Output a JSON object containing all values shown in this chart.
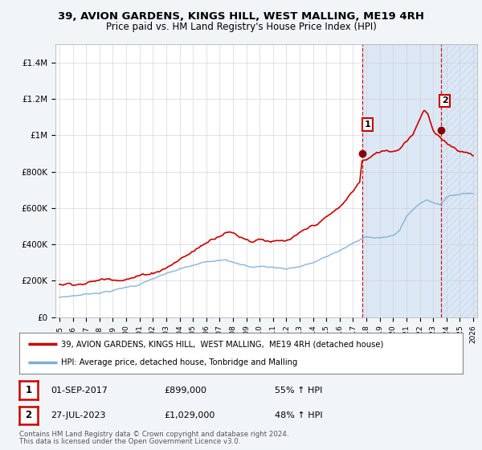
{
  "title": "39, AVION GARDENS, KINGS HILL, WEST MALLING, ME19 4RH",
  "subtitle": "Price paid vs. HM Land Registry's House Price Index (HPI)",
  "legend_line1": "39, AVION GARDENS, KINGS HILL,  WEST MALLING,  ME19 4RH (detached house)",
  "legend_line2": "HPI: Average price, detached house, Tonbridge and Malling",
  "sale1_date": "01-SEP-2017",
  "sale1_price": "£899,000",
  "sale1_pct": "55% ↑ HPI",
  "sale2_date": "27-JUL-2023",
  "sale2_price": "£1,029,000",
  "sale2_pct": "48% ↑ HPI",
  "footer1": "Contains HM Land Registry data © Crown copyright and database right 2024.",
  "footer2": "This data is licensed under the Open Government Licence v3.0.",
  "red_color": "#cc0000",
  "blue_color": "#7dadd4",
  "shade_color": "#dce8f5",
  "hatch_color": "#c0d0e8",
  "background_color": "#f2f5f8",
  "plot_bg_color": "#ffffff",
  "grid_color": "#cccccc",
  "ylim": [
    0,
    1500000
  ],
  "sale1_x": 2017.67,
  "sale1_y": 899000,
  "sale2_x": 2023.57,
  "sale2_y": 1029000,
  "xmin": 1994.7,
  "xmax": 2026.3
}
